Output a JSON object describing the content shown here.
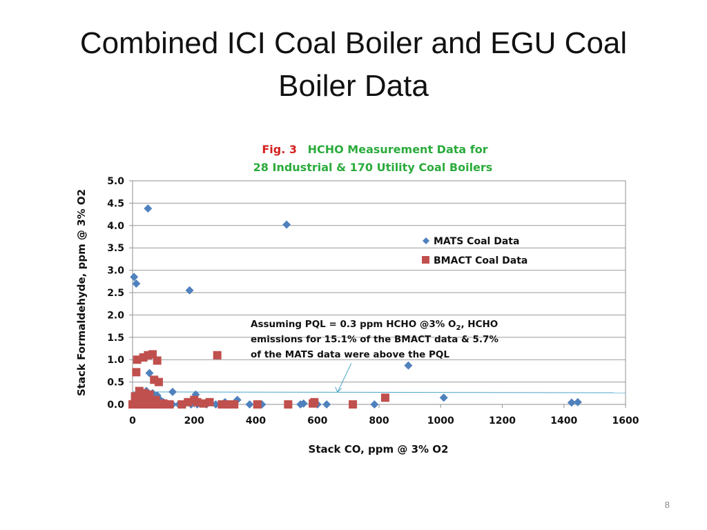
{
  "slide": {
    "title_line1": "Combined ICI Coal Boiler and EGU Coal",
    "title_line2": "Boiler Data",
    "page_number": "8"
  },
  "colors": {
    "fig_label": "#d42020",
    "fig_title": "#2bab3c",
    "mats": "#4f81bd",
    "bmact": "#c0504d",
    "grid": "#9a9a9a",
    "pql_line": "#4aa3c8"
  },
  "chart_data": {
    "type": "scatter",
    "fig_label": "Fig. 3",
    "title_line1": "HCHO Measurement Data for",
    "title_line2": "28 Industrial & 170 Utility Coal Boilers",
    "xlabel": "Stack CO, ppm @ 3% O2",
    "ylabel": "Stack Formaldehyde, ppm @ 3% O2",
    "xlim": [
      0,
      1600
    ],
    "ylim": [
      0,
      5
    ],
    "xticks": [
      0,
      200,
      400,
      600,
      800,
      1000,
      1200,
      1400,
      1600
    ],
    "yticks": [
      0,
      0.5,
      1,
      1.5,
      2,
      2.5,
      3,
      3.5,
      4,
      4.5,
      5
    ],
    "ytick_labels": [
      "0.0",
      "0.5",
      "1.0",
      "1.5",
      "2.0",
      "2.5",
      "3.0",
      "3.5",
      "4.0",
      "4.5",
      "5.0"
    ],
    "grid": "horizontal",
    "legend_position": "right",
    "annotation": {
      "line1": "Assuming PQL = 0.3 ppm HCHO @3% O",
      "line1_sub": "2",
      "line1_end": ", HCHO",
      "line2": "emissions for 15.1% of the BMACT data & 5.7%",
      "line3": "of the MATS data were above the PQL",
      "pql_value": 0.3,
      "arrow_target": [
        665,
        0.27
      ]
    },
    "series": [
      {
        "name": "MATS Coal Data",
        "marker": "diamond",
        "points": [
          [
            50,
            4.38
          ],
          [
            500,
            4.02
          ],
          [
            5,
            2.85
          ],
          [
            12,
            2.7
          ],
          [
            185,
            2.55
          ],
          [
            895,
            0.87
          ],
          [
            1010,
            0.15
          ],
          [
            1425,
            0.04
          ],
          [
            1445,
            0.05
          ],
          [
            130,
            0.28
          ],
          [
            205,
            0.22
          ],
          [
            55,
            0.7
          ],
          [
            80,
            0.2
          ],
          [
            60,
            0.15
          ],
          [
            30,
            0.12
          ],
          [
            100,
            0.05
          ],
          [
            110,
            0.0
          ],
          [
            130,
            0.0
          ],
          [
            150,
            0.0
          ],
          [
            170,
            0.02
          ],
          [
            190,
            0.0
          ],
          [
            210,
            0.0
          ],
          [
            240,
            0.0
          ],
          [
            270,
            0.0
          ],
          [
            300,
            0.05
          ],
          [
            340,
            0.1
          ],
          [
            380,
            0.0
          ],
          [
            420,
            0.0
          ],
          [
            545,
            0.0
          ],
          [
            555,
            0.02
          ],
          [
            600,
            0.0
          ],
          [
            630,
            0.0
          ],
          [
            785,
            0.0
          ],
          [
            10,
            0.0
          ],
          [
            20,
            0.0
          ],
          [
            40,
            0.05
          ],
          [
            70,
            0.0
          ],
          [
            90,
            0.1
          ],
          [
            45,
            0.3
          ],
          [
            65,
            0.25
          ]
        ]
      },
      {
        "name": "BMACT Coal Data",
        "marker": "square",
        "points": [
          [
            50,
            1.1
          ],
          [
            65,
            1.12
          ],
          [
            35,
            1.05
          ],
          [
            15,
            1.0
          ],
          [
            80,
            0.98
          ],
          [
            12,
            0.72
          ],
          [
            70,
            0.55
          ],
          [
            85,
            0.5
          ],
          [
            275,
            1.1
          ],
          [
            0,
            0.0
          ],
          [
            5,
            0.0
          ],
          [
            10,
            0.05
          ],
          [
            15,
            0.1
          ],
          [
            20,
            0.15
          ],
          [
            25,
            0.0
          ],
          [
            30,
            0.2
          ],
          [
            35,
            0.05
          ],
          [
            40,
            0.1
          ],
          [
            45,
            0.0
          ],
          [
            50,
            0.12
          ],
          [
            55,
            0.2
          ],
          [
            60,
            0.05
          ],
          [
            65,
            0.0
          ],
          [
            75,
            0.1
          ],
          [
            90,
            0.0
          ],
          [
            100,
            0.02
          ],
          [
            110,
            0.0
          ],
          [
            120,
            0.0
          ],
          [
            160,
            0.0
          ],
          [
            180,
            0.05
          ],
          [
            200,
            0.1
          ],
          [
            210,
            0.05
          ],
          [
            230,
            0.02
          ],
          [
            250,
            0.05
          ],
          [
            290,
            0.0
          ],
          [
            310,
            0.0
          ],
          [
            330,
            0.0
          ],
          [
            405,
            0.0
          ],
          [
            505,
            0.0
          ],
          [
            585,
            0.02
          ],
          [
            590,
            0.05
          ],
          [
            715,
            0.0
          ],
          [
            820,
            0.15
          ],
          [
            22,
            0.3
          ],
          [
            38,
            0.25
          ],
          [
            55,
            0.22
          ],
          [
            8,
            0.18
          ]
        ]
      }
    ]
  }
}
